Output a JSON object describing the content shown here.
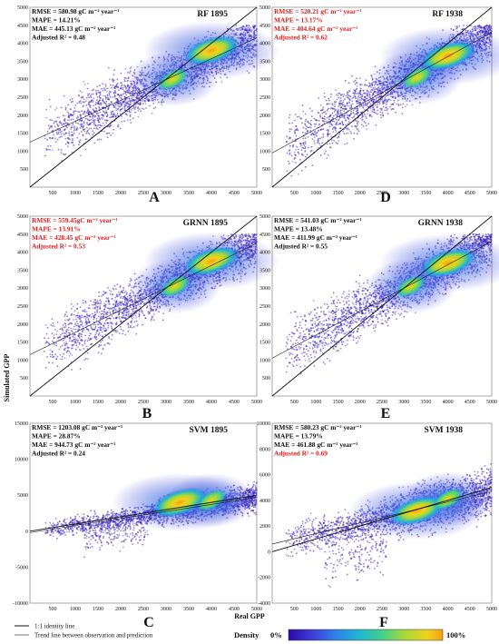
{
  "figure": {
    "ylabel": "Simulated GPP",
    "xlabel": "Real GPP",
    "legend": {
      "identity": "1:1 identity line",
      "trend": "Trend line between observation and prediction"
    },
    "density": {
      "title": "Density",
      "min_label": "0%",
      "max_label": "100%",
      "colors": [
        "#2c0aa8",
        "#3f3bd6",
        "#2f7fe8",
        "#1fb4d6",
        "#3fcf8e",
        "#a6d83a",
        "#f2d21c",
        "#f5a00f"
      ]
    },
    "colors": {
      "highlight": "#e21c1c",
      "normal": "#111111"
    }
  },
  "chart_data": [
    {
      "type": "scatter",
      "panel": "A",
      "title": "RF 1895",
      "xlim": [
        0,
        5000
      ],
      "ylim": [
        0,
        5000
      ],
      "xticks": [
        "500",
        "1000",
        "1500",
        "2000",
        "2500",
        "3000",
        "3500",
        "4000",
        "4500",
        "5000"
      ],
      "yticks": [
        "500",
        "1000",
        "1500",
        "2000",
        "2500",
        "3000",
        "3500",
        "4000",
        "4500",
        "5000"
      ],
      "stats_highlight": false,
      "stats": [
        "RMSE = 580.98 gC m⁻² year⁻¹",
        "MAPE = 14.21%",
        "MAE = 445.13 gC m⁻² year⁻¹",
        "Adjusted R² = 0.48"
      ],
      "trend_line": {
        "x": [
          0,
          5000
        ],
        "y": [
          1250,
          4150
        ]
      },
      "hotspots": [
        {
          "x": 4000,
          "y": 3800
        },
        {
          "x": 3150,
          "y": 3000
        }
      ]
    },
    {
      "type": "scatter",
      "panel": "D",
      "title": "RF 1938",
      "xlim": [
        0,
        5000
      ],
      "ylim": [
        0,
        5000
      ],
      "xticks": [
        "500",
        "1000",
        "1500",
        "2000",
        "2500",
        "3000",
        "3500",
        "4000",
        "4500",
        "5000"
      ],
      "yticks": [
        "500",
        "1000",
        "1500",
        "2000",
        "2500",
        "3000",
        "3500",
        "4000",
        "4500",
        "5000"
      ],
      "stats_highlight": true,
      "stats": [
        "RMSE = 520.21 gC m⁻² year⁻¹",
        "MAPE = 13.17%",
        "MAE = 404.64 gC m⁻² year⁻¹",
        "Adjusted R² = 0.62"
      ],
      "trend_line": {
        "x": [
          0,
          5000
        ],
        "y": [
          950,
          4300
        ]
      },
      "hotspots": [
        {
          "x": 4000,
          "y": 3650
        },
        {
          "x": 3300,
          "y": 3050
        }
      ]
    },
    {
      "type": "scatter",
      "panel": "B",
      "title": "GRNN 1895",
      "xlim": [
        0,
        5000
      ],
      "ylim": [
        0,
        5000
      ],
      "xticks": [
        "500",
        "1000",
        "1500",
        "2000",
        "2500",
        "3000",
        "3500",
        "4000",
        "4500",
        "5000"
      ],
      "yticks": [
        "500",
        "1000",
        "1500",
        "2000",
        "2500",
        "3000",
        "3500",
        "4000",
        "4500",
        "5000"
      ],
      "stats_highlight": true,
      "stats": [
        "RMSE = 559.45gC m⁻² year⁻¹",
        "MAPE = 13.91%",
        "MAE = 428.45 gC m⁻² year⁻¹",
        "Adjusted R² = 0.53"
      ],
      "trend_line": {
        "x": [
          0,
          5000
        ],
        "y": [
          1150,
          4250
        ]
      },
      "hotspots": [
        {
          "x": 4000,
          "y": 3750
        },
        {
          "x": 3200,
          "y": 3050
        }
      ]
    },
    {
      "type": "scatter",
      "panel": "E",
      "title": "GRNN 1938",
      "xlim": [
        0,
        5000
      ],
      "ylim": [
        0,
        5000
      ],
      "xticks": [
        "500",
        "1000",
        "1500",
        "2000",
        "2500",
        "3000",
        "3500",
        "4000",
        "4500",
        "5000"
      ],
      "yticks": [
        "500",
        "1000",
        "1500",
        "2000",
        "2500",
        "3000",
        "3500",
        "4000",
        "4500",
        "5000"
      ],
      "stats_highlight": false,
      "stats": [
        "RMSE = 541.03 gC m⁻² year⁻¹",
        "MAPE = 13.48%",
        "MAE = 411.99 gC m⁻² year⁻¹",
        "Adjusted R² = 0.55"
      ],
      "trend_line": {
        "x": [
          0,
          5000
        ],
        "y": [
          1050,
          4300
        ]
      },
      "hotspots": [
        {
          "x": 4000,
          "y": 3700
        },
        {
          "x": 3150,
          "y": 3050
        }
      ]
    },
    {
      "type": "scatter",
      "panel": "C",
      "title": "SVM 1895",
      "xlim": [
        0,
        5000
      ],
      "ylim": [
        -10000,
        15000
      ],
      "xticks": [
        "500",
        "1000",
        "1500",
        "2000",
        "2500",
        "3000",
        "3500",
        "4000",
        "4500",
        "5000"
      ],
      "yticks": [
        "-10000",
        "-5000",
        "0",
        "5000",
        "10000",
        "15000"
      ],
      "stats_highlight": false,
      "stats": [
        "RMSE = 1203.08 gC m⁻² year⁻¹",
        "MAPE = 28.87%",
        "MAE = 944.73 gC m⁻² year⁻¹",
        "Adjusted R² = 0.24"
      ],
      "trend_line": {
        "x": [
          0,
          5000
        ],
        "y": [
          -200,
          4700
        ]
      },
      "hotspots": [
        {
          "x": 3300,
          "y": 4000
        },
        {
          "x": 4000,
          "y": 4300
        }
      ]
    },
    {
      "type": "scatter",
      "panel": "F",
      "title": "SVM 1938",
      "xlim": [
        0,
        5000
      ],
      "ylim": [
        -4000,
        10000
      ],
      "xticks": [
        "500",
        "1000",
        "1500",
        "2000",
        "2500",
        "3000",
        "3500",
        "4000",
        "4500",
        "5000"
      ],
      "yticks": [
        "-4000",
        "-2000",
        "0",
        "2000",
        "4000",
        "6000",
        "8000",
        "10000"
      ],
      "stats_highlight": [
        false,
        false,
        false,
        true
      ],
      "stats": [
        "RMSE = 580.23 gC m⁻² year⁻¹",
        "MAPE = 13.79%",
        "MAE = 461.88 gC m⁻² year⁻¹",
        "Adjusted R² = 0.69"
      ],
      "trend_line": {
        "x": [
          0,
          5000
        ],
        "y": [
          600,
          4700
        ]
      },
      "hotspots": [
        {
          "x": 3300,
          "y": 3200
        },
        {
          "x": 4000,
          "y": 4100
        }
      ]
    }
  ]
}
